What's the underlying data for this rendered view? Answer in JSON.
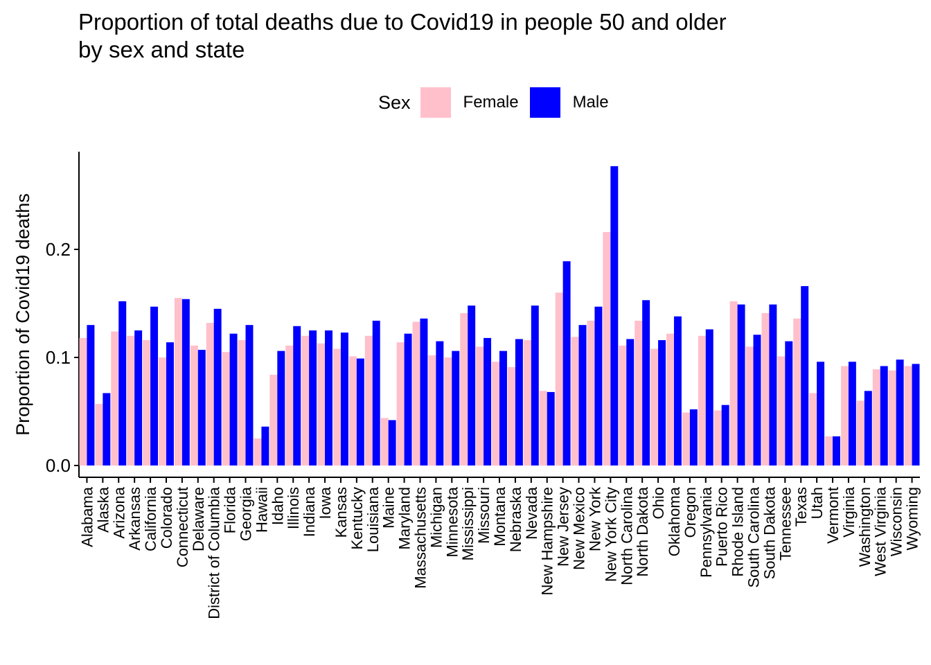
{
  "chart_data": {
    "type": "bar",
    "title": "Proportion of total deaths due to Covid19 in people 50 and older\nby sex and state",
    "xlabel": "",
    "ylabel": "Proportion of Covid19 deaths",
    "ylim": [
      0,
      0.29
    ],
    "yticks": [
      "0.0",
      "0.1",
      "0.2"
    ],
    "grid": false,
    "legend": {
      "title": "Sex",
      "position": "top"
    },
    "categories": [
      "Alabama",
      "Alaska",
      "Arizona",
      "Arkansas",
      "California",
      "Colorado",
      "Connecticut",
      "Delaware",
      "District of Columbia",
      "Florida",
      "Georgia",
      "Hawaii",
      "Idaho",
      "Illinois",
      "Indiana",
      "Iowa",
      "Kansas",
      "Kentucky",
      "Louisiana",
      "Maine",
      "Maryland",
      "Massachusetts",
      "Michigan",
      "Minnesota",
      "Mississippi",
      "Missouri",
      "Montana",
      "Nebraska",
      "Nevada",
      "New Hampshire",
      "New Jersey",
      "New Mexico",
      "New York",
      "New York City",
      "North Carolina",
      "North Dakota",
      "Ohio",
      "Oklahoma",
      "Oregon",
      "Pennsylvania",
      "Puerto Rico",
      "Rhode Island",
      "South Carolina",
      "South Dakota",
      "Tennessee",
      "Texas",
      "Utah",
      "Vermont",
      "Virginia",
      "Washington",
      "West Virginia",
      "Wisconsin",
      "Wyoming"
    ],
    "series": [
      {
        "name": "Female",
        "color": "#FFC0CB",
        "values": [
          0.118,
          0.057,
          0.124,
          0.12,
          0.116,
          0.1,
          0.155,
          0.111,
          0.132,
          0.105,
          0.116,
          0.025,
          0.084,
          0.111,
          0.12,
          0.113,
          0.108,
          0.101,
          0.12,
          0.044,
          0.114,
          0.133,
          0.102,
          0.1,
          0.141,
          0.11,
          0.096,
          0.091,
          0.116,
          0.069,
          0.16,
          0.119,
          0.134,
          0.216,
          0.111,
          0.134,
          0.108,
          0.122,
          0.049,
          0.12,
          0.051,
          0.152,
          0.11,
          0.141,
          0.101,
          0.136,
          0.067,
          0.027,
          0.092,
          0.06,
          0.089,
          0.088,
          0.092
        ]
      },
      {
        "name": "Male",
        "color": "#0000FF",
        "values": [
          0.13,
          0.067,
          0.152,
          0.125,
          0.147,
          0.114,
          0.154,
          0.107,
          0.145,
          0.122,
          0.13,
          0.036,
          0.106,
          0.129,
          0.125,
          0.125,
          0.123,
          0.099,
          0.134,
          0.042,
          0.122,
          0.136,
          0.115,
          0.106,
          0.148,
          0.118,
          0.106,
          0.117,
          0.148,
          0.068,
          0.189,
          0.13,
          0.147,
          0.277,
          0.117,
          0.153,
          0.116,
          0.138,
          0.052,
          0.126,
          0.056,
          0.149,
          0.121,
          0.149,
          0.115,
          0.166,
          0.096,
          0.027,
          0.096,
          0.069,
          0.092,
          0.098,
          0.094
        ]
      }
    ]
  }
}
